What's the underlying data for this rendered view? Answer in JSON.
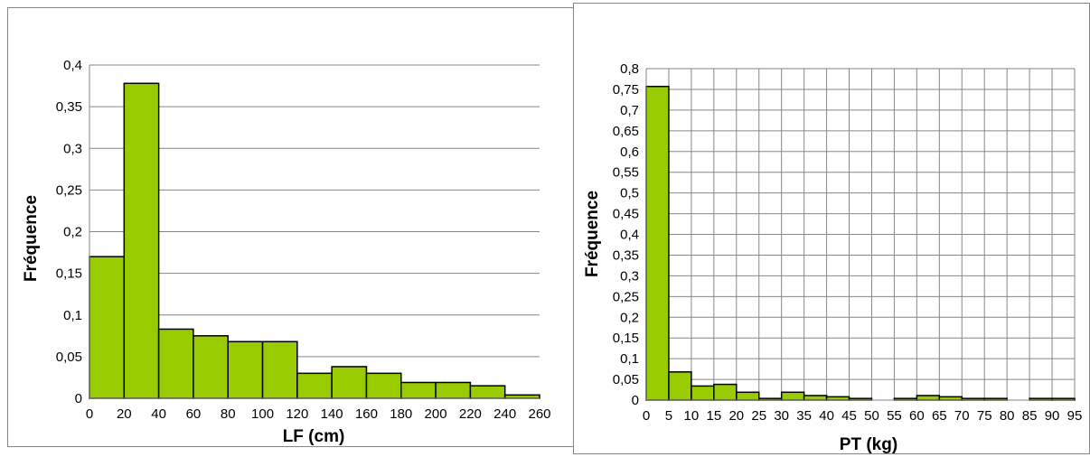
{
  "colors": {
    "bar_fill": "#99cc00",
    "bar_stroke": "#000000",
    "grid": "#868686"
  },
  "chart_data": [
    {
      "type": "bar",
      "xlabel": "LF (cm)",
      "ylabel": "Fréquence",
      "x_ticks": [
        "0",
        "20",
        "40",
        "60",
        "80",
        "100",
        "120",
        "140",
        "160",
        "180",
        "200",
        "220",
        "240",
        "260"
      ],
      "y_ticks": [
        "0",
        "0,05",
        "0,1",
        "0,15",
        "0,2",
        "0,25",
        "0,3",
        "0,35",
        "0,4"
      ],
      "bin_edges": [
        0,
        20,
        40,
        60,
        80,
        100,
        120,
        140,
        160,
        180,
        200,
        220,
        240,
        260
      ],
      "values": [
        0.17,
        0.378,
        0.083,
        0.075,
        0.068,
        0.068,
        0.03,
        0.038,
        0.03,
        0.019,
        0.019,
        0.015,
        0.004
      ],
      "xlim": [
        0,
        260
      ],
      "ylim": [
        0,
        0.4
      ],
      "grid": "horizontal",
      "legend": "none"
    },
    {
      "type": "bar",
      "xlabel": "PT (kg)",
      "ylabel": "Fréquence",
      "x_ticks": [
        "0",
        "5",
        "10",
        "15",
        "20",
        "25",
        "30",
        "35",
        "40",
        "45",
        "50",
        "55",
        "60",
        "65",
        "70",
        "75",
        "80",
        "85",
        "90",
        "95"
      ],
      "y_ticks": [
        "0",
        "0,05",
        "0,1",
        "0,15",
        "0,2",
        "0,25",
        "0,3",
        "0,35",
        "0,4",
        "0,45",
        "0,5",
        "0,55",
        "0,6",
        "0,65",
        "0,7",
        "0,75",
        "0,8"
      ],
      "bin_edges": [
        0,
        5,
        10,
        15,
        20,
        25,
        30,
        35,
        40,
        45,
        50,
        55,
        60,
        65,
        70,
        75,
        80,
        85,
        90,
        95
      ],
      "values": [
        0.757,
        0.068,
        0.034,
        0.038,
        0.019,
        0.004,
        0.019,
        0.011,
        0.008,
        0.004,
        0.0,
        0.004,
        0.011,
        0.008,
        0.004,
        0.004,
        0.0,
        0.004,
        0.004
      ],
      "xlim": [
        0,
        95
      ],
      "ylim": [
        0,
        0.8
      ],
      "grid": "both",
      "legend": "none"
    }
  ]
}
